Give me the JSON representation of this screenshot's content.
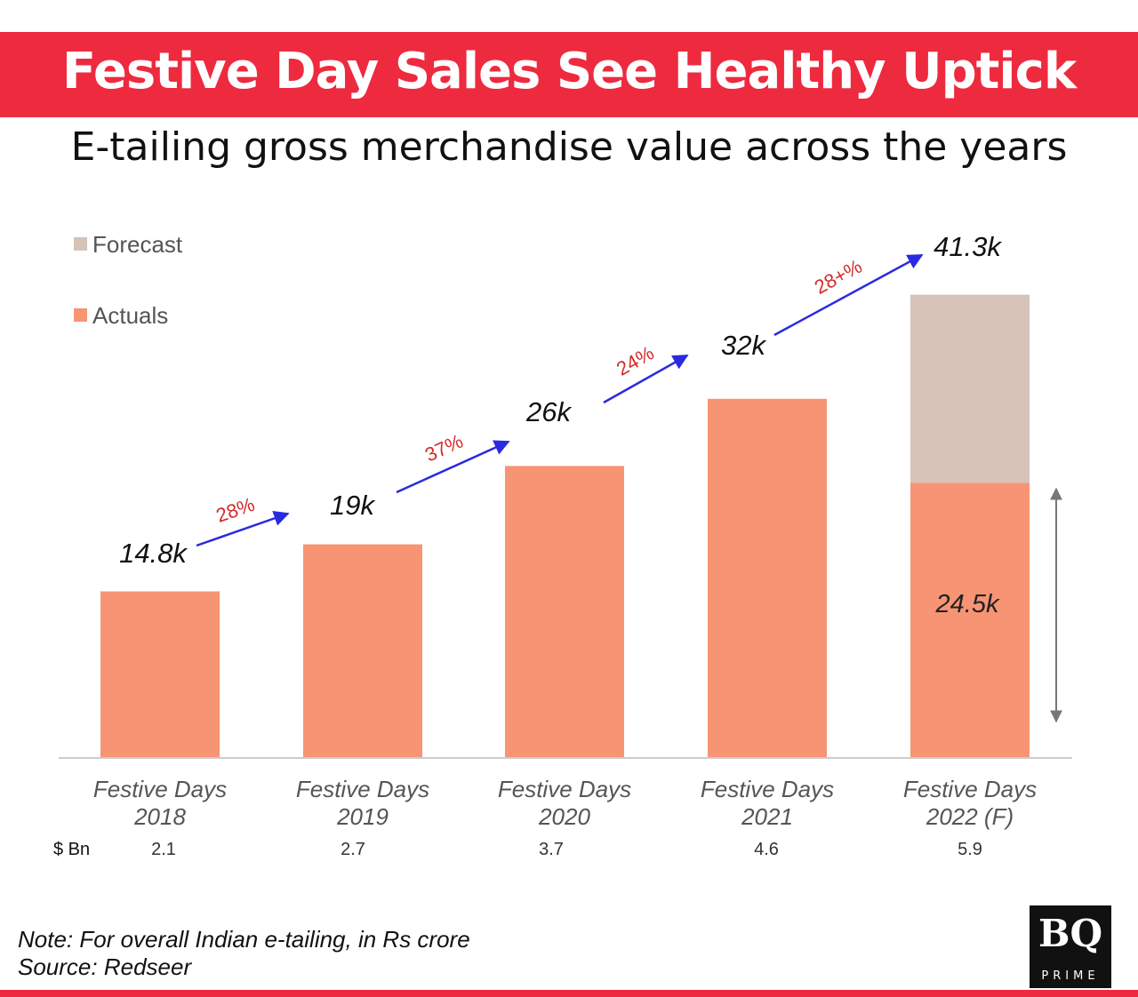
{
  "header": {
    "title": "Festive Day Sales See Healthy Uptick",
    "subtitle": "E-tailing gross merchandise value across the years"
  },
  "chart_data": {
    "type": "bar",
    "categories": [
      [
        "Festive Days",
        "2018"
      ],
      [
        "Festive Days",
        "2019"
      ],
      [
        "Festive Days",
        "2020"
      ],
      [
        "Festive Days",
        "2021"
      ],
      [
        "Festive Days",
        "2022 (F)"
      ]
    ],
    "series": [
      {
        "name": "Actuals",
        "values": [
          14.8,
          19,
          26,
          32,
          24.5
        ],
        "color": "#f79474"
      },
      {
        "name": "Forecast",
        "values": [
          0,
          0,
          0,
          0,
          16.8
        ],
        "color": "#d5c3b8"
      }
    ],
    "value_labels": [
      "14.8k",
      "19k",
      "26k",
      "32k",
      "41.3k"
    ],
    "actual_label_2022": "24.5k",
    "growth_labels": [
      "28%",
      "37%",
      "24%",
      "28+%"
    ],
    "usd_row_label": "$ Bn",
    "usd_values": [
      "2.1",
      "2.7",
      "3.7",
      "4.6",
      "5.9"
    ],
    "legend": [
      "Forecast",
      "Actuals"
    ],
    "ylim": [
      0,
      45
    ],
    "unit": "Rs crore (thousands)"
  },
  "colors": {
    "banner": "#ee2a3f",
    "actuals": "#f79474",
    "forecast": "#d5c3b8",
    "arrow": "#2a2ae0",
    "growth_text": "#d42a2a",
    "axis": "#cccccc"
  },
  "footer": {
    "note": "Note: For overall Indian e-tailing, in Rs crore",
    "source": "Source: Redseer",
    "logo_main": "BQ",
    "logo_sub": "PRIME"
  }
}
